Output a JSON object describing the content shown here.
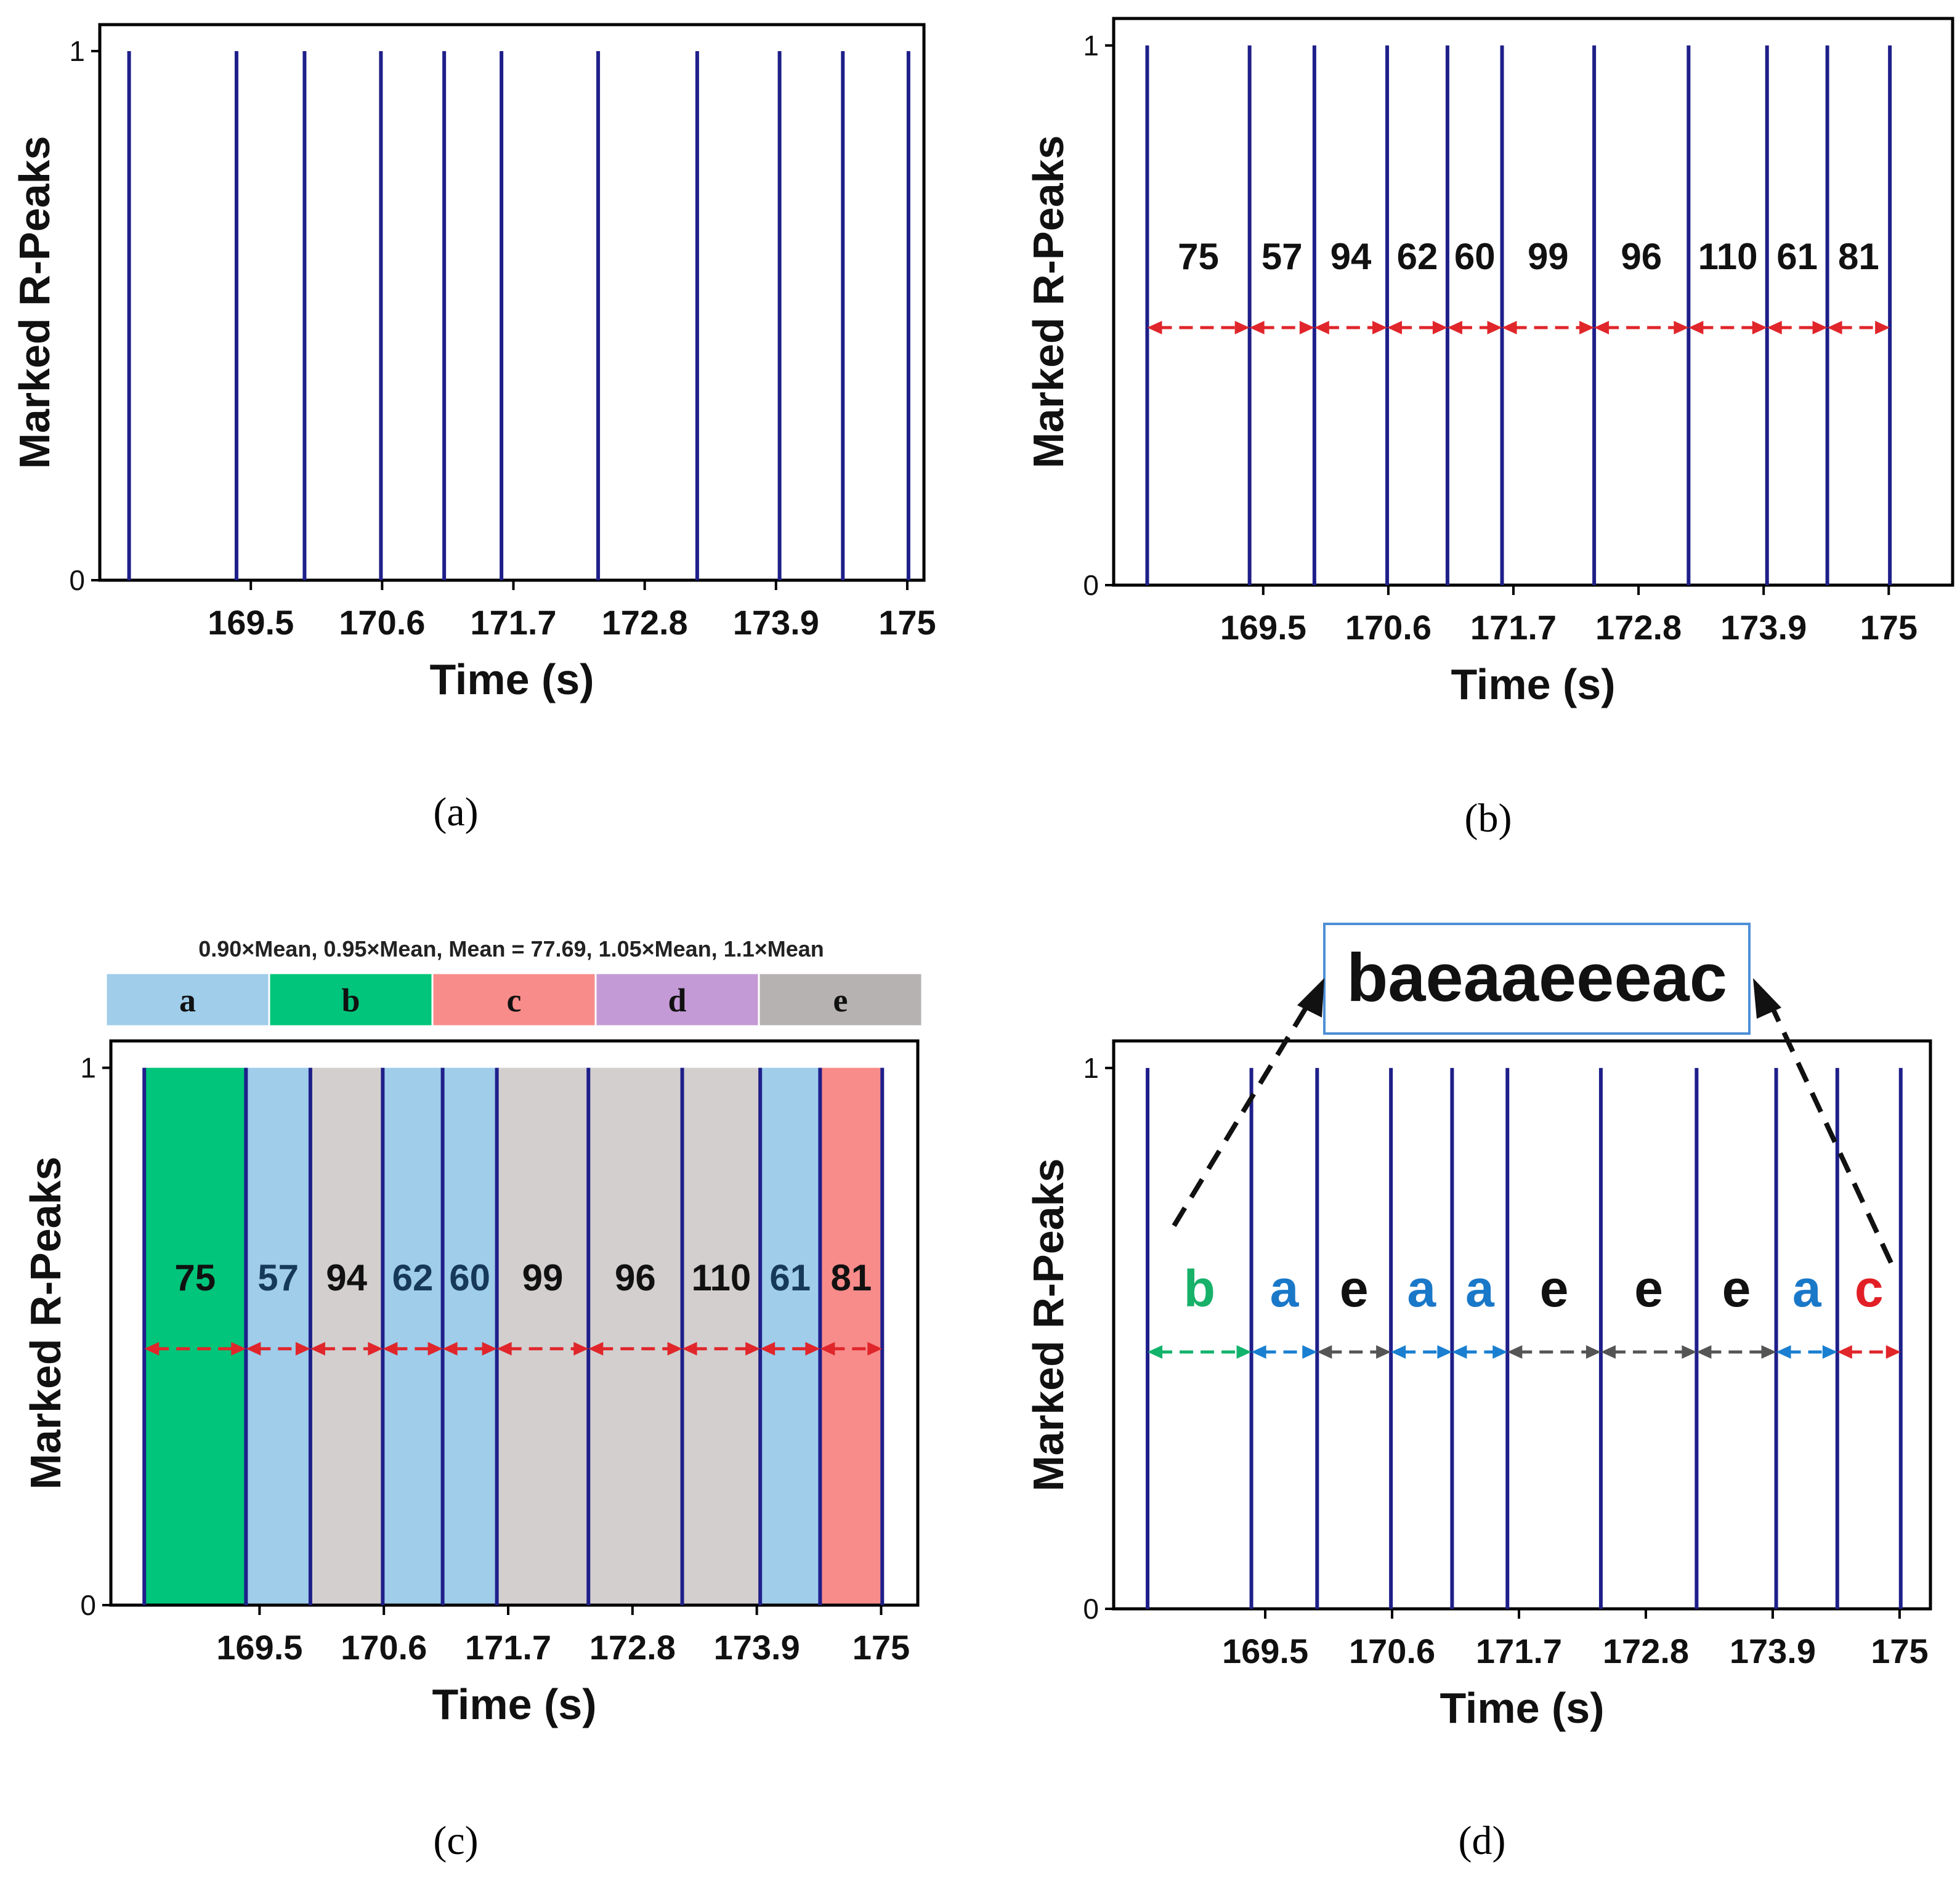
{
  "figure": {
    "panel_labels": [
      "(a)",
      "(b)",
      "(c)",
      "(d)"
    ]
  },
  "colors": {
    "peak": "#1f1f8a",
    "arrow_red": "#e0262b",
    "arrow_green": "#12b36b",
    "arrow_blue": "#1a7fd0",
    "arrow_gray": "#555555",
    "label_b": "#17b16a",
    "label_a": "#1a78c8",
    "label_e": "#111111",
    "label_c": "#e21f26",
    "band_a": "#9fcdea",
    "band_b": "#00c57a",
    "band_c": "#f88c8a",
    "band_d": "#c39ad6",
    "band_e": "#b7b2b2",
    "fill_e": "#d3cfcf"
  },
  "chart_data": [
    {
      "panel": "a",
      "type": "line",
      "title": "",
      "xlabel": "Time (s)",
      "ylabel": "Marked R-Peaks",
      "xticks": [
        169.5,
        170.6,
        171.7,
        172.8,
        173.9,
        175
      ],
      "xtick_labels": [
        "169.5",
        "170.6",
        "171.7",
        "172.8",
        "173.9",
        "175"
      ],
      "yticks": [
        0,
        1
      ],
      "ytick_labels": [
        "0",
        "1"
      ],
      "xlim": [
        168.25,
        175.15
      ],
      "ylim": [
        0,
        1.05
      ],
      "peak_times": [
        168.48,
        169.38,
        169.95,
        170.59,
        171.12,
        171.6,
        172.41,
        173.24,
        173.93,
        174.46,
        175.01
      ]
    },
    {
      "panel": "b",
      "type": "line",
      "xlabel": "Time (s)",
      "ylabel": "Marked R-Peaks",
      "xticks": [
        169.5,
        170.6,
        171.7,
        172.8,
        173.9,
        175
      ],
      "xtick_labels": [
        "169.5",
        "170.6",
        "171.7",
        "172.8",
        "173.9",
        "175"
      ],
      "yticks": [
        0,
        1
      ],
      "ytick_labels": [
        "0",
        "1"
      ],
      "xlim": [
        168.25,
        175.15
      ],
      "ylim": [
        0,
        1.05
      ],
      "peak_times": [
        168.48,
        169.38,
        169.95,
        170.59,
        171.12,
        171.6,
        172.41,
        173.24,
        173.93,
        174.46,
        175.01
      ],
      "rr_intervals": [
        "75",
        "57",
        "94",
        "62",
        "60",
        "99",
        "96",
        "110",
        "61",
        "81"
      ]
    },
    {
      "panel": "c",
      "type": "line",
      "xlabel": "Time (s)",
      "ylabel": "Marked R-Peaks",
      "xticks": [
        169.5,
        170.6,
        171.7,
        172.8,
        173.9,
        175
      ],
      "xtick_labels": [
        "169.5",
        "170.6",
        "171.7",
        "172.8",
        "173.9",
        "175"
      ],
      "yticks": [
        0,
        1
      ],
      "ytick_labels": [
        "0",
        "1"
      ],
      "xlim": [
        168.25,
        175.15
      ],
      "ylim": [
        0,
        1.05
      ],
      "peak_times": [
        168.48,
        169.38,
        169.95,
        170.59,
        171.12,
        171.6,
        172.41,
        173.24,
        173.93,
        174.46,
        175.01
      ],
      "rr_intervals": [
        "75",
        "57",
        "94",
        "62",
        "60",
        "99",
        "96",
        "110",
        "61",
        "81"
      ],
      "interval_classes": [
        "b",
        "a",
        "e",
        "a",
        "a",
        "e",
        "e",
        "e",
        "a",
        "c"
      ],
      "legend_caption": "0.90×Mean, 0.95×Mean, Mean = 77.69, 1.05×Mean, 1.1×Mean",
      "legend_bands": [
        "a",
        "b",
        "c",
        "d",
        "e"
      ]
    },
    {
      "panel": "d",
      "type": "line",
      "xlabel": "Time (s)",
      "ylabel": "Marked R-Peaks",
      "xticks": [
        169.5,
        170.6,
        171.7,
        172.8,
        173.9,
        175
      ],
      "xtick_labels": [
        "169.5",
        "170.6",
        "171.7",
        "172.8",
        "173.9",
        "175"
      ],
      "yticks": [
        0,
        1
      ],
      "ytick_labels": [
        "0",
        "1"
      ],
      "xlim": [
        168.25,
        175.15
      ],
      "ylim": [
        0,
        1.05
      ],
      "peak_times": [
        168.48,
        169.38,
        169.95,
        170.59,
        171.12,
        171.6,
        172.41,
        173.24,
        173.93,
        174.46,
        175.01
      ],
      "interval_classes": [
        "b",
        "a",
        "e",
        "a",
        "a",
        "e",
        "e",
        "e",
        "a",
        "c"
      ],
      "sequence": "baeaaeeeac"
    }
  ]
}
